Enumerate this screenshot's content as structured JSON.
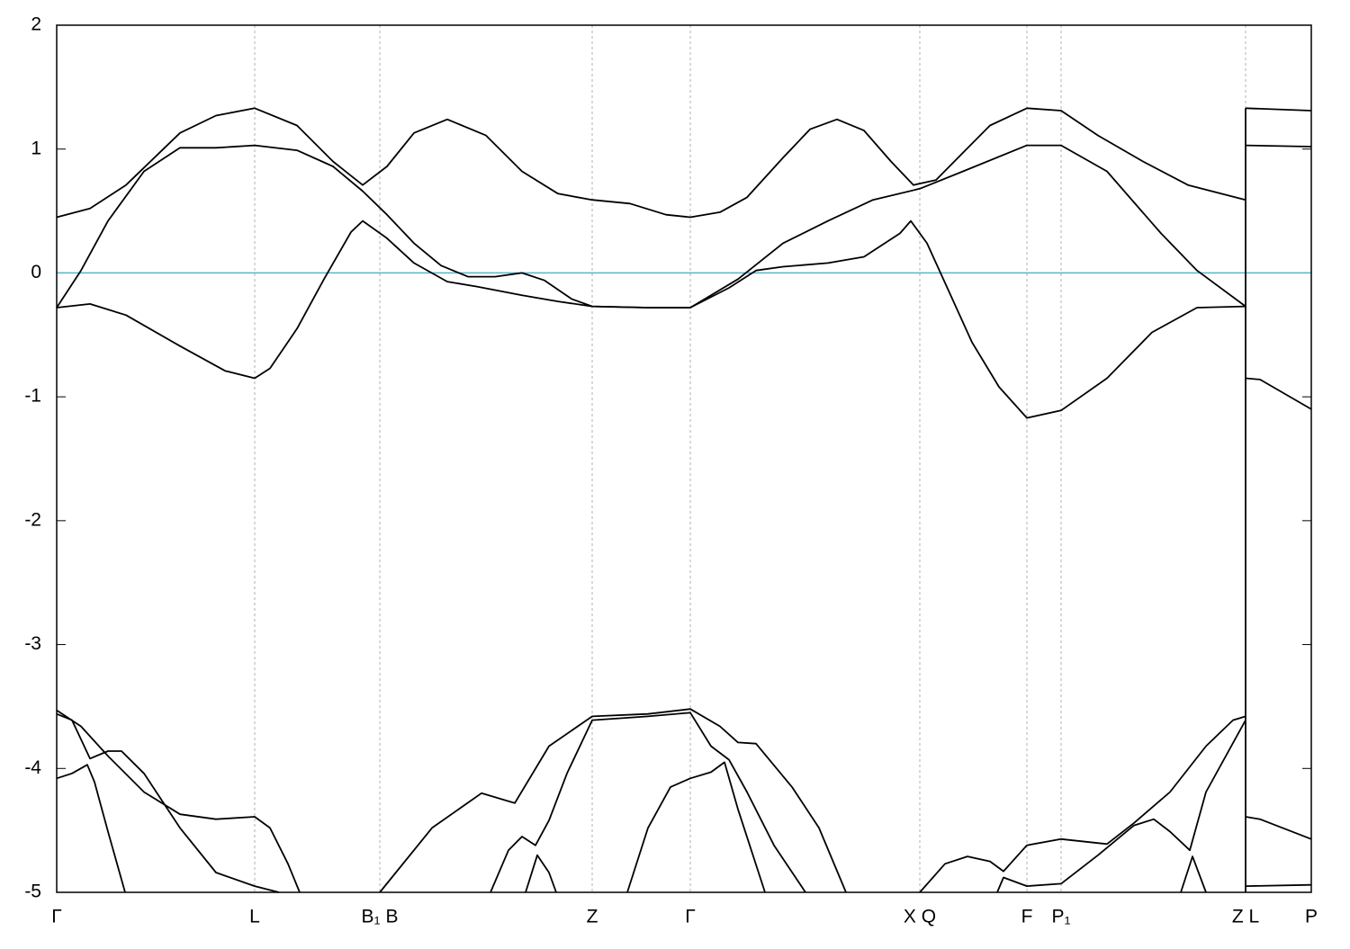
{
  "chart_data": {
    "type": "line",
    "xlim": [
      0,
      1394
    ],
    "ylim": [
      -5,
      2
    ],
    "yticks": [
      -5,
      -4,
      -3,
      -2,
      -1,
      0,
      1,
      2
    ],
    "xticks": [
      {
        "value": 0,
        "label": "Γ"
      },
      {
        "value": 220,
        "label": "L"
      },
      {
        "value": 359,
        "label": "B₁ B"
      },
      {
        "value": 595,
        "label": "Z"
      },
      {
        "value": 704,
        "label": "Γ"
      },
      {
        "value": 959,
        "label": "X Q"
      },
      {
        "value": 1078,
        "label": "F"
      },
      {
        "value": 1116,
        "label": "P₁"
      },
      {
        "value": 1321,
        "label": "Z L"
      },
      {
        "value": 1394,
        "label": "P"
      }
    ],
    "grid": true,
    "fermi_level": 0,
    "fermi_color": "#5ab4c8",
    "series": [
      {
        "color": "#000000",
        "x": [
          0,
          37,
          77,
          137,
          177,
          220,
          267,
          307,
          340,
          367,
          397,
          434,
          477,
          517,
          557,
          595,
          637,
          677,
          704,
          737,
          767,
          807,
          837,
          867,
          897,
          927,
          952,
          977,
          1007,
          1037,
          1078,
          1116,
          1157,
          1207,
          1257,
          1321,
          1321,
          1321,
          1394
        ],
        "values": [
          0.45,
          0.52,
          0.71,
          1.13,
          1.27,
          1.33,
          1.19,
          0.9,
          0.71,
          0.86,
          1.13,
          1.24,
          1.11,
          0.82,
          0.64,
          0.59,
          0.56,
          0.47,
          0.45,
          0.49,
          0.61,
          0.93,
          1.16,
          1.24,
          1.15,
          0.9,
          0.71,
          0.75,
          0.97,
          1.19,
          1.33,
          1.31,
          1.11,
          0.9,
          0.71,
          0.59,
          null,
          1.33,
          1.31
        ]
      },
      {
        "color": "#000000",
        "x": [
          0,
          27,
          57,
          97,
          137,
          177,
          220,
          267,
          307,
          340,
          367,
          397,
          427,
          457,
          487,
          517,
          542,
          572,
          595,
          657,
          704,
          757,
          807,
          857,
          907,
          959,
          1007,
          1078,
          1116,
          1167,
          1227,
          1267,
          1321,
          1321,
          1321,
          1394
        ],
        "values": [
          -0.28,
          0.02,
          0.42,
          0.82,
          1.01,
          1.01,
          1.03,
          0.99,
          0.86,
          0.66,
          0.47,
          0.24,
          0.06,
          -0.03,
          -0.03,
          0.0,
          -0.06,
          -0.21,
          -0.27,
          -0.28,
          -0.28,
          -0.05,
          0.24,
          0.42,
          0.59,
          0.68,
          0.82,
          1.03,
          1.03,
          0.82,
          0.32,
          0.02,
          -0.27,
          null,
          1.03,
          1.02
        ]
      },
      {
        "color": "#000000",
        "x": [
          0,
          37,
          77,
          137,
          187,
          220,
          237,
          267,
          297,
          327,
          340,
          367,
          397,
          434,
          467,
          517,
          557,
          595,
          657,
          704,
          747,
          777,
          807,
          857,
          897,
          937,
          949,
          967,
          987,
          1017,
          1047,
          1078,
          1116,
          1167,
          1217,
          1267,
          1321,
          1321,
          1321,
          1337,
          1394
        ],
        "values": [
          -0.28,
          -0.25,
          -0.34,
          -0.59,
          -0.79,
          -0.85,
          -0.77,
          -0.45,
          -0.05,
          0.33,
          0.42,
          0.28,
          0.08,
          -0.07,
          -0.11,
          -0.18,
          -0.23,
          -0.27,
          -0.28,
          -0.28,
          -0.12,
          0.02,
          0.05,
          0.08,
          0.13,
          0.32,
          0.42,
          0.24,
          -0.08,
          -0.56,
          -0.92,
          -1.17,
          -1.11,
          -0.85,
          -0.48,
          -0.28,
          -0.27,
          null,
          -0.85,
          -0.86,
          -1.1
        ]
      },
      {
        "color": "#000000",
        "x": [
          0,
          27,
          57,
          97,
          137,
          177,
          220,
          237,
          257,
          270,
          300,
          359,
          417,
          472,
          509,
          547,
          595,
          657,
          704,
          737,
          757,
          777,
          817,
          847,
          877,
          900,
          959,
          987,
          1012,
          1037,
          1052,
          1078,
          1116,
          1167,
          1197,
          1237,
          1277,
          1307,
          1321,
          1321,
          1321,
          1337,
          1394
        ],
        "values": [
          -3.53,
          -3.66,
          -3.9,
          -4.19,
          -4.37,
          -4.41,
          -4.39,
          -4.48,
          -4.77,
          -5.0,
          null,
          -5.0,
          -4.48,
          -4.2,
          -4.28,
          -3.82,
          -3.58,
          -3.56,
          -3.52,
          -3.66,
          -3.79,
          -3.8,
          -4.15,
          -4.48,
          -5.0,
          null,
          -5.0,
          -4.77,
          -4.71,
          -4.75,
          -4.83,
          -4.62,
          -4.57,
          -4.61,
          -4.44,
          -4.19,
          -3.82,
          -3.61,
          -3.58,
          null,
          -4.39,
          -4.41,
          -4.57
        ]
      },
      {
        "color": "#000000",
        "x": [
          0,
          17,
          37,
          57,
          72,
          97,
          137,
          177,
          220,
          247,
          260,
          634,
          657,
          682,
          704,
          727,
          742,
          757,
          787,
          800,
          1045,
          1052,
          1078,
          1116,
          1157,
          1197,
          1219,
          1237,
          1259,
          1277,
          1321,
          1321,
          1321,
          1394
        ],
        "values": [
          -3.56,
          -3.61,
          -3.92,
          -3.86,
          -3.86,
          -4.04,
          -4.48,
          -4.84,
          -4.95,
          -5.0,
          null,
          -5.0,
          -4.48,
          -4.15,
          -4.08,
          -4.03,
          -3.95,
          -4.33,
          -5.0,
          null,
          -5.0,
          -4.88,
          -4.95,
          -4.93,
          -4.7,
          -4.46,
          -4.41,
          -4.51,
          -4.66,
          -4.19,
          -3.61,
          null,
          -4.95,
          -4.94
        ]
      },
      {
        "color": "#000000",
        "x": [
          0,
          17,
          34,
          42,
          57,
          76,
          200,
          482,
          502,
          517,
          532,
          547,
          567,
          595,
          657,
          704,
          727,
          747,
          767,
          797,
          832
        ],
        "values": [
          -4.08,
          -4.04,
          -3.97,
          -4.11,
          -4.51,
          -5.0,
          null,
          -5.0,
          -4.66,
          -4.55,
          -4.62,
          -4.42,
          -4.04,
          -3.61,
          -3.58,
          -3.55,
          -3.82,
          -3.93,
          -4.19,
          -4.62,
          -5.0
        ]
      },
      {
        "color": "#000000",
        "x": [
          521,
          534,
          547,
          555,
          600,
          1249,
          1262,
          1277
        ],
        "values": [
          -5.0,
          -4.7,
          -4.84,
          -5.0,
          null,
          -5.0,
          -4.71,
          -5.0
        ]
      }
    ]
  }
}
